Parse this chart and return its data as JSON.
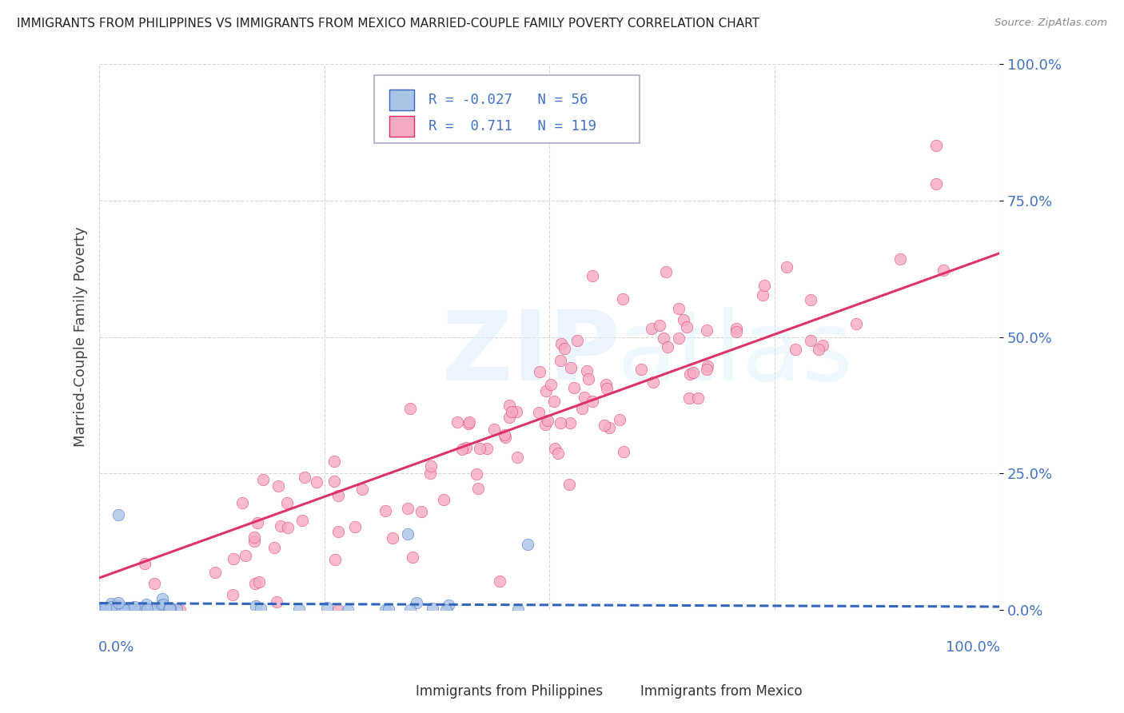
{
  "title": "IMMIGRANTS FROM PHILIPPINES VS IMMIGRANTS FROM MEXICO MARRIED-COUPLE FAMILY POVERTY CORRELATION CHART",
  "source": "Source: ZipAtlas.com",
  "ylabel": "Married-Couple Family Poverty",
  "ytick_labels": [
    "0.0%",
    "25.0%",
    "50.0%",
    "75.0%",
    "100.0%"
  ],
  "ytick_values": [
    0.0,
    0.25,
    0.5,
    0.75,
    1.0
  ],
  "legend1_label": "Immigrants from Philippines",
  "legend2_label": "Immigrants from Mexico",
  "r1": -0.027,
  "n1": 56,
  "r2": 0.711,
  "n2": 119,
  "color_philippines": "#aac4e8",
  "color_mexico": "#f5aac0",
  "color_philippines_line": "#3366bb",
  "color_mexico_line": "#dd3366",
  "background_color": "#ffffff",
  "grid_color": "#cccccc",
  "title_color": "#222222",
  "axis_label_color": "#4472c4"
}
